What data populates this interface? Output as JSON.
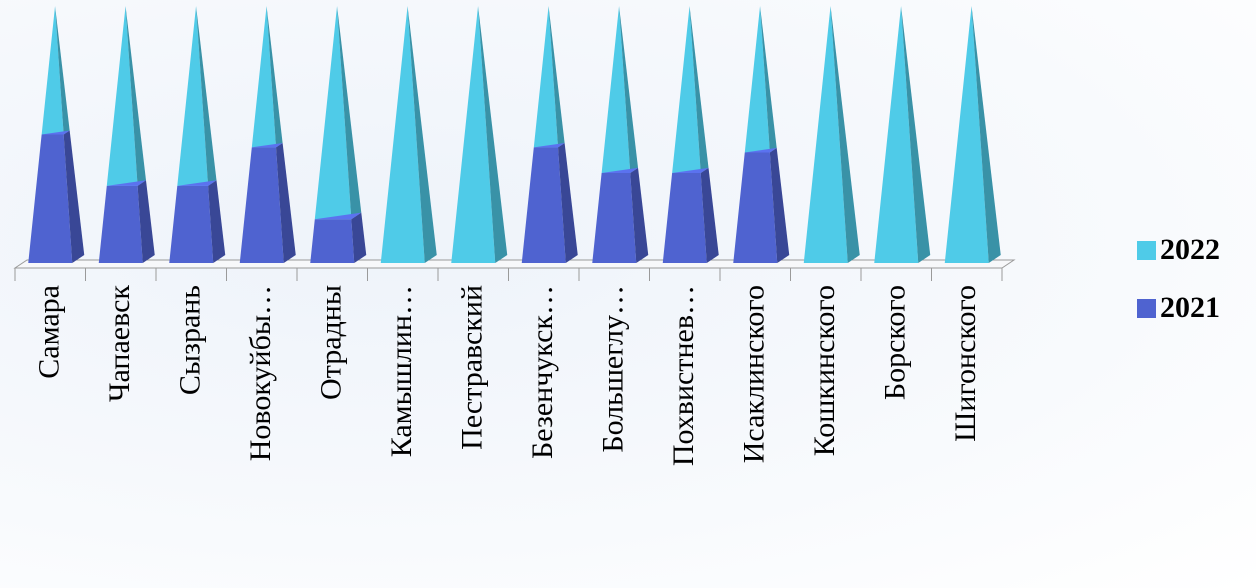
{
  "chart_data": {
    "type": "bar",
    "style": "stacked-3d-pyramid",
    "categories": [
      "Самара",
      "Чапаевск",
      "Сызрань",
      "Новокуйбы…",
      "Отрадны",
      "Камышлин…",
      "Пестравский",
      "Безенчукск…",
      "Большеглу…",
      "Похвистнев…",
      "Исаклинского",
      "Кошкинского",
      "Борского",
      "Шигонского"
    ],
    "series": [
      {
        "name": "2021",
        "color": "#4f63d0",
        "values": [
          0.5,
          0.3,
          0.3,
          0.45,
          0.17,
          0,
          0,
          0.45,
          0.35,
          0.35,
          0.43,
          0,
          0,
          0
        ]
      },
      {
        "name": "2022",
        "color": "#4fcbe8",
        "values": [
          0.5,
          0.7,
          0.7,
          0.55,
          0.83,
          1.0,
          1.0,
          0.55,
          0.65,
          0.65,
          0.57,
          1.0,
          1.0,
          1.0
        ]
      }
    ],
    "ylim": [
      0,
      1
    ],
    "grid": false,
    "legend_position": "right"
  },
  "legend": {
    "items": [
      {
        "label": "2022",
        "color": "#4fcbe8"
      },
      {
        "label": "2021",
        "color": "#4f63d0"
      }
    ]
  }
}
